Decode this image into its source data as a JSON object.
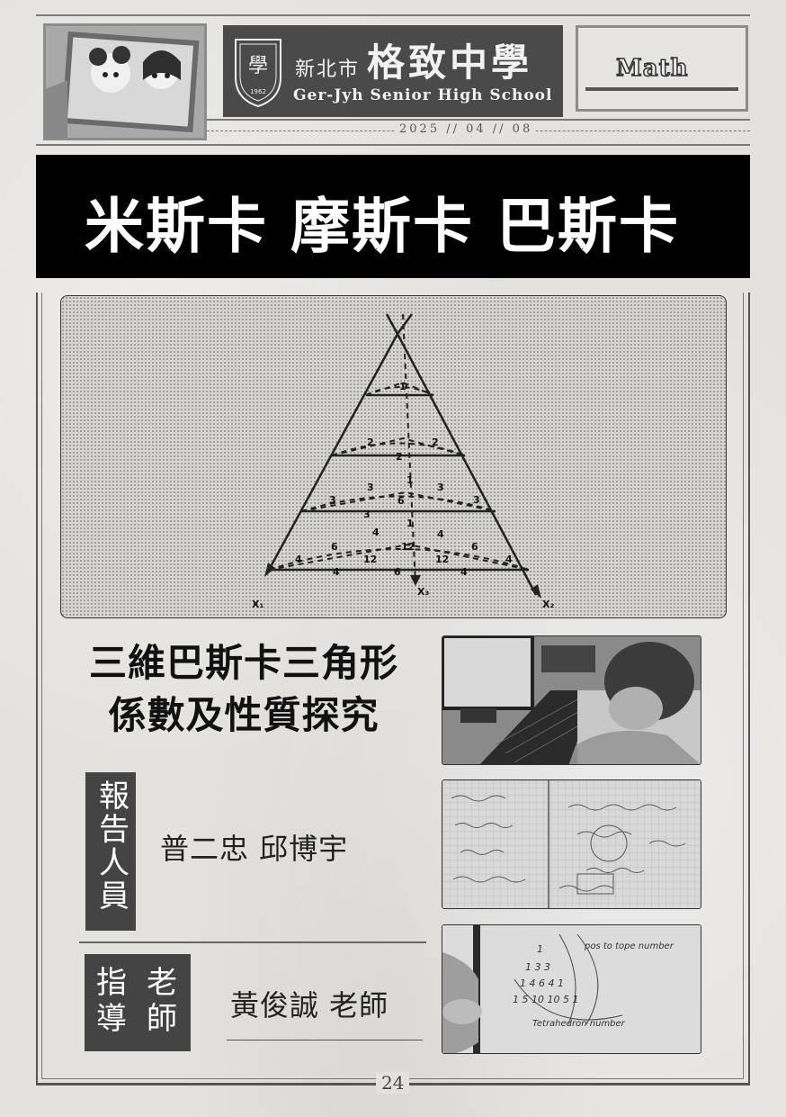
{
  "header": {
    "school_city": "新北市",
    "school_name": "格致中學",
    "school_english": "Ger-Jyh Senior High School",
    "seal_year": "1962",
    "subject": "Math",
    "date": "2025 // 04 // 08"
  },
  "title": "米斯卡 摩斯卡 巴斯卡",
  "figure": {
    "axis_labels": [
      "X₁",
      "X₃",
      "X₂"
    ],
    "layer_numbers": [
      "1",
      "2",
      "2",
      "2",
      "3",
      "3",
      "6",
      "3",
      "3",
      "3",
      "4",
      "6",
      "12",
      "4",
      "6",
      "4",
      "12",
      "12",
      "4",
      "6",
      "4",
      "4",
      "1",
      "1"
    ]
  },
  "article": {
    "subtitle_line1": "三維巴斯卡三角形",
    "subtitle_line2": "係數及性質探究",
    "reporter_label": "報告人員",
    "reporters": "普二忠  邱博宇",
    "advisor_label_col1": "指導",
    "advisor_label_col2": "老師",
    "advisor": "黃俊誠  老師"
  },
  "photos": {
    "photo3_text1": "pos to tope number",
    "photo3_text2": "Tetrahedron number"
  },
  "page_number": "24",
  "colors": {
    "title_bg": "#000000",
    "label_bg": "#444444",
    "page_bg": "#e4e2df"
  }
}
